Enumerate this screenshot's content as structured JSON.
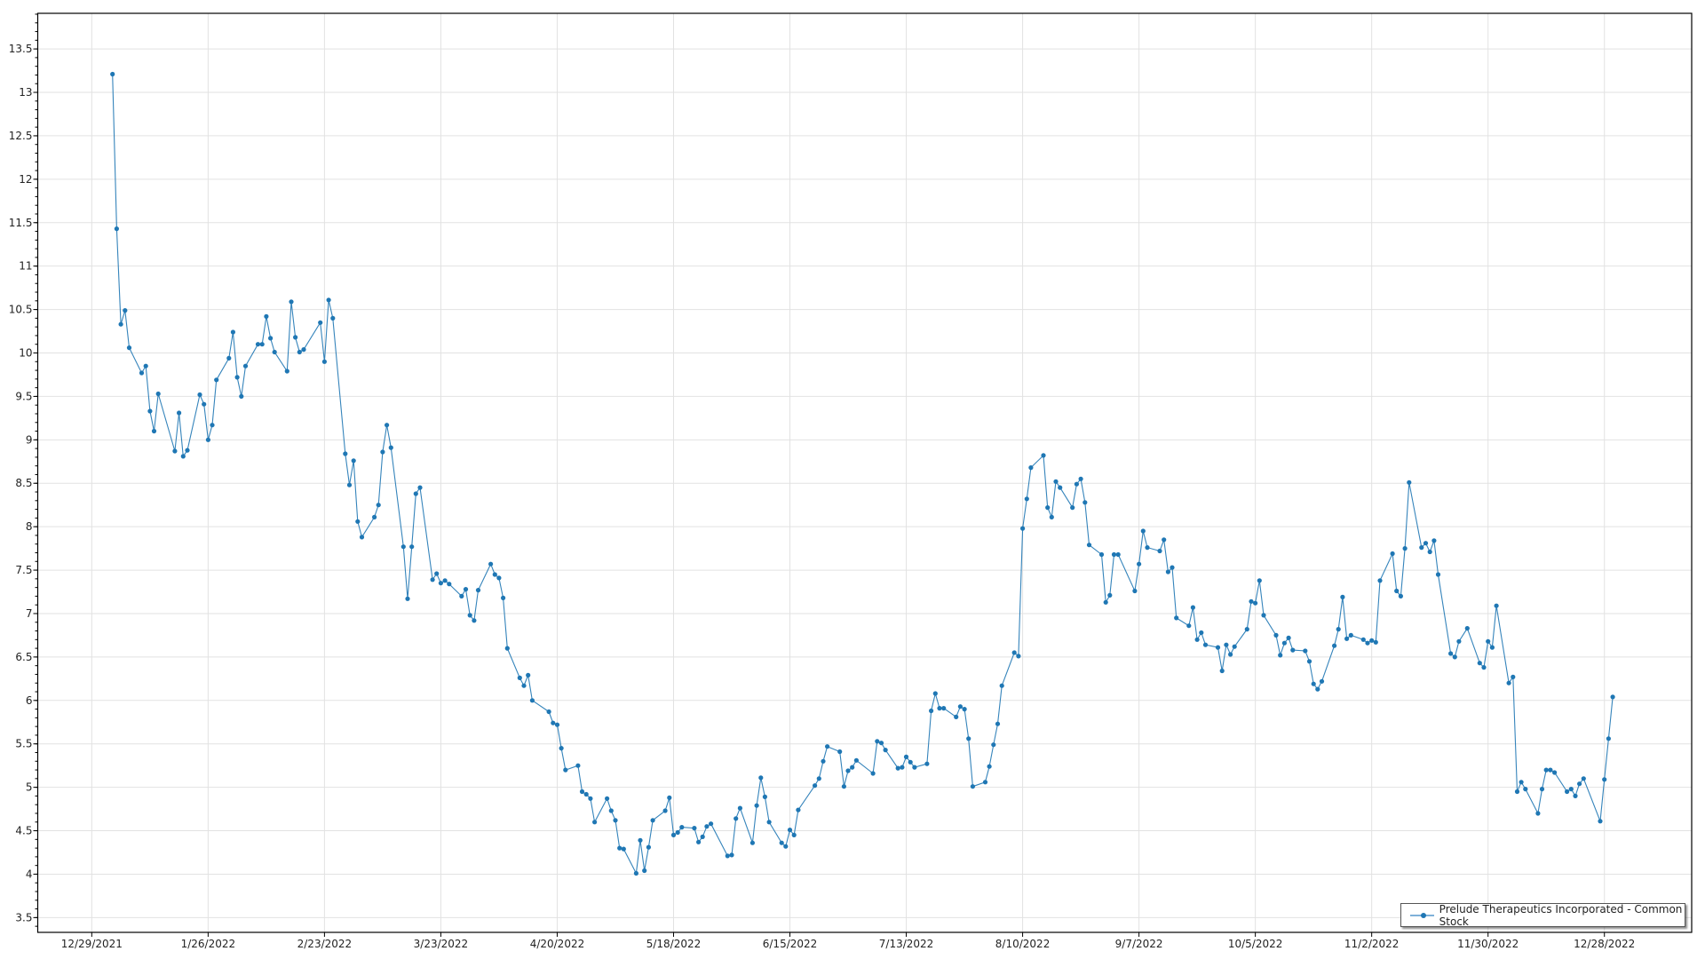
{
  "chart_data": {
    "type": "line",
    "title": "",
    "xlabel": "",
    "ylabel": "",
    "xlim": [
      "2021-12-16",
      "2023-01-18"
    ],
    "ylim": [
      3.33,
      13.91
    ],
    "grid": true,
    "legend_position": "bottom-right",
    "line_color": "#1f77b4",
    "x_ticks": [
      "12/29/2021",
      "1/26/2022",
      "2/23/2022",
      "3/23/2022",
      "4/20/2022",
      "5/18/2022",
      "6/15/2022",
      "7/13/2022",
      "8/10/2022",
      "9/7/2022",
      "10/5/2022",
      "11/2/2022",
      "11/30/2022",
      "12/28/2022"
    ],
    "y_ticks": [
      "3.5",
      "4",
      "4.5",
      "5",
      "5.5",
      "6",
      "6.5",
      "7",
      "7.5",
      "8",
      "8.5",
      "9",
      "9.5",
      "10",
      "10.5",
      "11",
      "11.5",
      "12",
      "12.5",
      "13",
      "13.5"
    ],
    "series": [
      {
        "name": "Prelude Therapeutics Incorporated - Common Stock",
        "x": [
          "2022-01-03",
          "2022-01-04",
          "2022-01-05",
          "2022-01-06",
          "2022-01-07",
          "2022-01-10",
          "2022-01-11",
          "2022-01-12",
          "2022-01-13",
          "2022-01-14",
          "2022-01-18",
          "2022-01-19",
          "2022-01-20",
          "2022-01-21",
          "2022-01-24",
          "2022-01-25",
          "2022-01-26",
          "2022-01-27",
          "2022-01-28",
          "2022-01-31",
          "2022-02-01",
          "2022-02-02",
          "2022-02-03",
          "2022-02-04",
          "2022-02-07",
          "2022-02-08",
          "2022-02-09",
          "2022-02-10",
          "2022-02-11",
          "2022-02-14",
          "2022-02-15",
          "2022-02-16",
          "2022-02-17",
          "2022-02-18",
          "2022-02-22",
          "2022-02-23",
          "2022-02-24",
          "2022-02-25",
          "2022-02-28",
          "2022-03-01",
          "2022-03-02",
          "2022-03-03",
          "2022-03-04",
          "2022-03-07",
          "2022-03-08",
          "2022-03-09",
          "2022-03-10",
          "2022-03-11",
          "2022-03-14",
          "2022-03-15",
          "2022-03-16",
          "2022-03-17",
          "2022-03-18",
          "2022-03-21",
          "2022-03-22",
          "2022-03-23",
          "2022-03-24",
          "2022-03-25",
          "2022-03-28",
          "2022-03-29",
          "2022-03-30",
          "2022-03-31",
          "2022-04-01",
          "2022-04-04",
          "2022-04-05",
          "2022-04-06",
          "2022-04-07",
          "2022-04-08",
          "2022-04-11",
          "2022-04-12",
          "2022-04-13",
          "2022-04-14",
          "2022-04-18",
          "2022-04-19",
          "2022-04-20",
          "2022-04-21",
          "2022-04-22",
          "2022-04-25",
          "2022-04-26",
          "2022-04-27",
          "2022-04-28",
          "2022-04-29",
          "2022-05-02",
          "2022-05-03",
          "2022-05-04",
          "2022-05-05",
          "2022-05-06",
          "2022-05-09",
          "2022-05-10",
          "2022-05-11",
          "2022-05-12",
          "2022-05-13",
          "2022-05-16",
          "2022-05-17",
          "2022-05-18",
          "2022-05-19",
          "2022-05-20",
          "2022-05-23",
          "2022-05-24",
          "2022-05-25",
          "2022-05-26",
          "2022-05-27",
          "2022-05-31",
          "2022-06-01",
          "2022-06-02",
          "2022-06-03",
          "2022-06-06",
          "2022-06-07",
          "2022-06-08",
          "2022-06-09",
          "2022-06-10",
          "2022-06-13",
          "2022-06-14",
          "2022-06-15",
          "2022-06-16",
          "2022-06-17",
          "2022-06-21",
          "2022-06-22",
          "2022-06-23",
          "2022-06-24",
          "2022-06-27",
          "2022-06-28",
          "2022-06-29",
          "2022-06-30",
          "2022-07-01",
          "2022-07-05",
          "2022-07-06",
          "2022-07-07",
          "2022-07-08",
          "2022-07-11",
          "2022-07-12",
          "2022-07-13",
          "2022-07-14",
          "2022-07-15",
          "2022-07-18",
          "2022-07-19",
          "2022-07-20",
          "2022-07-21",
          "2022-07-22",
          "2022-07-25",
          "2022-07-26",
          "2022-07-27",
          "2022-07-28",
          "2022-07-29",
          "2022-08-01",
          "2022-08-02",
          "2022-08-03",
          "2022-08-04",
          "2022-08-05",
          "2022-08-08",
          "2022-08-09",
          "2022-08-10",
          "2022-08-11",
          "2022-08-12",
          "2022-08-15",
          "2022-08-16",
          "2022-08-17",
          "2022-08-18",
          "2022-08-19",
          "2022-08-22",
          "2022-08-23",
          "2022-08-24",
          "2022-08-25",
          "2022-08-26",
          "2022-08-29",
          "2022-08-30",
          "2022-08-31",
          "2022-09-01",
          "2022-09-02",
          "2022-09-06",
          "2022-09-07",
          "2022-09-08",
          "2022-09-09",
          "2022-09-12",
          "2022-09-13",
          "2022-09-14",
          "2022-09-15",
          "2022-09-16",
          "2022-09-19",
          "2022-09-20",
          "2022-09-21",
          "2022-09-22",
          "2022-09-23",
          "2022-09-26",
          "2022-09-27",
          "2022-09-28",
          "2022-09-29",
          "2022-09-30",
          "2022-10-03",
          "2022-10-04",
          "2022-10-05",
          "2022-10-06",
          "2022-10-07",
          "2022-10-10",
          "2022-10-11",
          "2022-10-12",
          "2022-10-13",
          "2022-10-14",
          "2022-10-17",
          "2022-10-18",
          "2022-10-19",
          "2022-10-20",
          "2022-10-21",
          "2022-10-24",
          "2022-10-25",
          "2022-10-26",
          "2022-10-27",
          "2022-10-28",
          "2022-10-31",
          "2022-11-01",
          "2022-11-02",
          "2022-11-03",
          "2022-11-04",
          "2022-11-07",
          "2022-11-08",
          "2022-11-09",
          "2022-11-10",
          "2022-11-11",
          "2022-11-14",
          "2022-11-15",
          "2022-11-16",
          "2022-11-17",
          "2022-11-18",
          "2022-11-21",
          "2022-11-22",
          "2022-11-23",
          "2022-11-25",
          "2022-11-28",
          "2022-11-29",
          "2022-11-30",
          "2022-12-01",
          "2022-12-02",
          "2022-12-05",
          "2022-12-06",
          "2022-12-07",
          "2022-12-08",
          "2022-12-09",
          "2022-12-12",
          "2022-12-13",
          "2022-12-14",
          "2022-12-15",
          "2022-12-16",
          "2022-12-19",
          "2022-12-20",
          "2022-12-21",
          "2022-12-22",
          "2022-12-23",
          "2022-12-27",
          "2022-12-28",
          "2022-12-29",
          "2022-12-30"
        ],
        "y": [
          13.21,
          11.43,
          10.33,
          10.49,
          10.06,
          9.77,
          9.85,
          9.33,
          9.1,
          9.53,
          8.87,
          9.31,
          8.81,
          8.88,
          9.52,
          9.41,
          9.0,
          9.17,
          9.69,
          9.94,
          10.24,
          9.72,
          9.5,
          9.85,
          10.1,
          10.1,
          10.42,
          10.17,
          10.01,
          9.79,
          10.59,
          10.18,
          10.01,
          10.04,
          10.35,
          9.9,
          10.61,
          10.4,
          8.84,
          8.48,
          8.76,
          8.06,
          7.88,
          8.11,
          8.25,
          8.86,
          9.17,
          8.91,
          7.77,
          7.17,
          7.77,
          8.38,
          8.45,
          7.39,
          7.46,
          7.35,
          7.38,
          7.34,
          7.2,
          7.28,
          6.98,
          6.92,
          7.27,
          7.57,
          7.45,
          7.41,
          7.18,
          6.6,
          6.26,
          6.17,
          6.29,
          6.0,
          5.87,
          5.74,
          5.72,
          5.45,
          5.2,
          5.25,
          4.95,
          4.92,
          4.87,
          4.6,
          4.87,
          4.73,
          4.62,
          4.3,
          4.29,
          4.01,
          4.39,
          4.04,
          4.31,
          4.62,
          4.73,
          4.88,
          4.45,
          4.48,
          4.54,
          4.53,
          4.37,
          4.43,
          4.55,
          4.58,
          4.21,
          4.22,
          4.64,
          4.76,
          4.36,
          4.79,
          5.11,
          4.89,
          4.6,
          4.36,
          4.32,
          4.51,
          4.45,
          4.74,
          5.02,
          5.1,
          5.3,
          5.47,
          5.41,
          5.01,
          5.19,
          5.23,
          5.31,
          5.16,
          5.53,
          5.51,
          5.43,
          5.22,
          5.23,
          5.35,
          5.29,
          5.23,
          5.27,
          5.88,
          6.08,
          5.91,
          5.91,
          5.81,
          5.93,
          5.9,
          5.56,
          5.01,
          5.06,
          5.24,
          5.49,
          5.73,
          6.17,
          6.55,
          6.51,
          7.98,
          8.32,
          8.68,
          8.82,
          8.22,
          8.11,
          8.52,
          8.45,
          8.22,
          8.49,
          8.55,
          8.28,
          7.79,
          7.68,
          7.13,
          7.21,
          7.68,
          7.68,
          7.26,
          7.57,
          7.95,
          7.76,
          7.72,
          7.85,
          7.48,
          7.53,
          6.95,
          6.86,
          7.07,
          6.7,
          6.78,
          6.64,
          6.61,
          6.34,
          6.64,
          6.53,
          6.62,
          6.82,
          7.14,
          7.12,
          7.38,
          6.98,
          6.75,
          6.52,
          6.66,
          6.72,
          6.58,
          6.57,
          6.45,
          6.19,
          6.13,
          6.22,
          6.63,
          6.82,
          7.19,
          6.71,
          6.75,
          6.7,
          6.66,
          6.69,
          6.67,
          7.38,
          7.69,
          7.26,
          7.2,
          7.75,
          8.51,
          7.76,
          7.81,
          7.71,
          7.84,
          7.45,
          6.54,
          6.5,
          6.68,
          6.83,
          6.43,
          6.38,
          6.68,
          6.61,
          7.09,
          6.2,
          6.27,
          4.95,
          5.06,
          4.98,
          4.7,
          4.98,
          5.2,
          5.2,
          5.17,
          4.95,
          4.98,
          4.9,
          5.04,
          5.1,
          4.61,
          5.09,
          5.56,
          6.04
        ]
      }
    ]
  }
}
